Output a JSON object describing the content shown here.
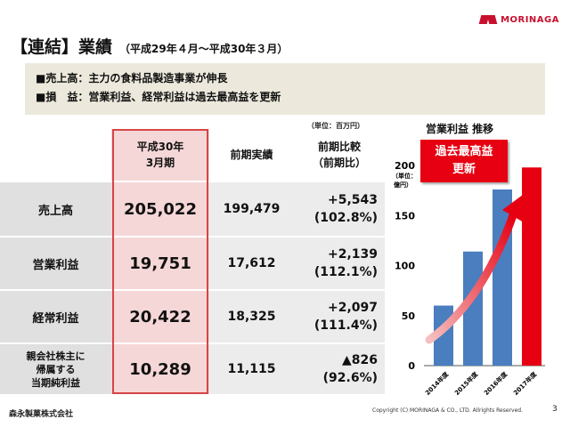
{
  "header": {
    "logo_text": "MORINAGA",
    "title": "【連結】業績",
    "subtitle": "（平成29年４月～平成30年３月）"
  },
  "summary": {
    "line1": "■売上高：主力の食料品製造事業が伸長",
    "line2": "■損　益：営業利益、経常利益は過去最高益を更新"
  },
  "table": {
    "unit_note": "（単位：百万円）",
    "headers": {
      "current_line1": "平成30年",
      "current_line2": "3月期",
      "previous": "前期実績",
      "change_line1": "前期比較",
      "change_line2": "（前期比）"
    },
    "rows": [
      {
        "label": "売上高",
        "label_lines": [],
        "current": "205,022",
        "previous": "199,479",
        "diff": "+5,543",
        "ratio": "(102.8%)"
      },
      {
        "label": "営業利益",
        "label_lines": [],
        "current": "19,751",
        "previous": "17,612",
        "diff": "+2,139",
        "ratio": "(112.1%)"
      },
      {
        "label": "経常利益",
        "label_lines": [],
        "current": "20,422",
        "previous": "18,325",
        "diff": "+2,097",
        "ratio": "(111.4%)"
      },
      {
        "label": "",
        "label_lines": [
          "親会社株主に",
          "帰属する",
          "当期純利益"
        ],
        "current": "10,289",
        "previous": "11,115",
        "diff": "▲826",
        "ratio": "(92.6%)"
      }
    ]
  },
  "chart_data": {
    "type": "bar",
    "title": "営業利益 推移",
    "ylabel": "（単位：億円）",
    "ylabel_line1": "（単位：",
    "ylabel_line2": "億円）",
    "categories": [
      "2014年度",
      "2015年度",
      "2016年度",
      "2017年度"
    ],
    "values": [
      60,
      114,
      176,
      198
    ],
    "colors": [
      "#4a7ebf",
      "#4a7ebf",
      "#4a7ebf",
      "#e60012"
    ],
    "ylim": [
      0,
      200
    ],
    "yticks": [
      0,
      50,
      100,
      150,
      200
    ],
    "grid": false,
    "annotation_line1": "過去最高益",
    "annotation_line2": "更新"
  },
  "footer": {
    "company": "森永製菓株式会社",
    "copyright": "Copyright (C) MORINAGA & CO., LTD. Allrights Reserved.",
    "page": "3"
  }
}
